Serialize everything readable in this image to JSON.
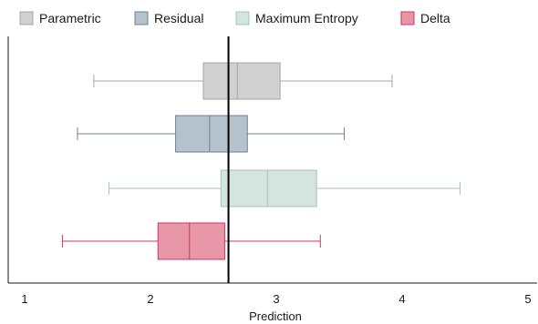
{
  "chart_data": {
    "type": "boxplot",
    "orientation": "horizontal",
    "xlabel": "Prediction",
    "xlim": [
      0.9,
      5.1
    ],
    "xticks": [
      1,
      2,
      3,
      4,
      5
    ],
    "xtick_labels": [
      "1",
      "2",
      "3",
      "4",
      "5"
    ],
    "grid": false,
    "legend_position": "top",
    "reference_line": {
      "x": 2.62,
      "color": "#000000"
    },
    "series": [
      {
        "name": "Parametric",
        "whisker_low": 1.55,
        "q1": 2.42,
        "median": 2.69,
        "q3": 3.03,
        "whisker_high": 3.92,
        "fill": "#d0d0d0",
        "stroke": "#a6a6a6"
      },
      {
        "name": "Residual",
        "whisker_low": 1.42,
        "q1": 2.2,
        "median": 2.47,
        "q3": 2.77,
        "whisker_high": 3.54,
        "fill": "#b3c2cd",
        "stroke": "#6a8296"
      },
      {
        "name": "Maximum Entropy",
        "whisker_low": 1.67,
        "q1": 2.56,
        "median": 2.93,
        "q3": 3.32,
        "whisker_high": 4.46,
        "fill": "#d4e4de",
        "stroke": "#a8c2b8"
      },
      {
        "name": "Delta",
        "whisker_low": 1.3,
        "q1": 2.06,
        "median": 2.31,
        "q3": 2.59,
        "whisker_high": 3.35,
        "fill": "#e897a8",
        "stroke": "#c63a5a"
      }
    ]
  }
}
